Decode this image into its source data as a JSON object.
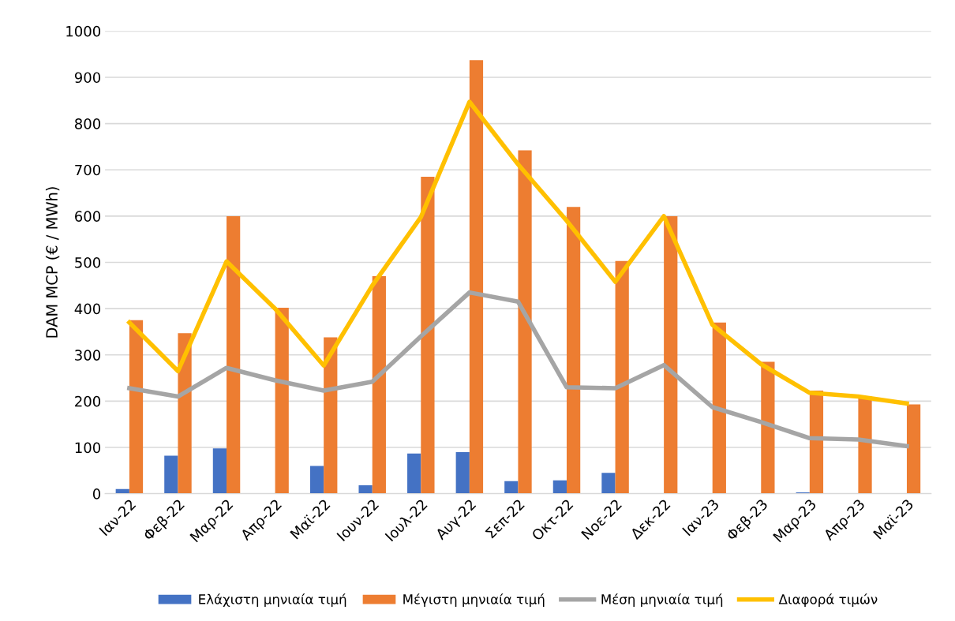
{
  "chart_data": {
    "type": "bar",
    "ylabel": "DAM MCP (€ / MWh)",
    "categories": [
      "Ιαν-22",
      "Φεβ-22",
      "Μαρ-22",
      "Απρ-22",
      "Μαϊ-22",
      "Ιουν-22",
      "Ιουλ-22",
      "Αυγ-22",
      "Σεπ-22",
      "Οκτ-22",
      "Νοε-22",
      "Δεκ-22",
      "Ιαν-23",
      "Φεβ-23",
      "Μαρ-23",
      "Απρ-23",
      "Μαϊ-23"
    ],
    "series": [
      {
        "name": "Ελάχιστη μηνιαία τιμή",
        "color": "#4472c4",
        "values": [
          10,
          82,
          98,
          0,
          60,
          18,
          87,
          90,
          27,
          29,
          45,
          0,
          0,
          0,
          3,
          0,
          0
        ]
      },
      {
        "name": "Μέγιστη μηνιαία τιμή",
        "color": "#ed7d31",
        "values": [
          375,
          347,
          600,
          402,
          338,
          470,
          685,
          937,
          742,
          620,
          503,
          600,
          370,
          285,
          223,
          210,
          193
        ]
      },
      {
        "name": "Μέση μηνιαία τιμή",
        "type": "line",
        "color": "#a5a5a5",
        "values": [
          228,
          210,
          272,
          245,
          223,
          242,
          340,
          435,
          415,
          230,
          228,
          278,
          187,
          155,
          120,
          117,
          103
        ]
      },
      {
        "name": "Διαφορά τιμών",
        "type": "line",
        "color": "#ffc000",
        "values": [
          370,
          265,
          502,
          400,
          277,
          450,
          598,
          847,
          712,
          590,
          458,
          600,
          365,
          280,
          218,
          210,
          195
        ]
      }
    ],
    "ylim": [
      0,
      1000
    ],
    "yticks": [
      0,
      100,
      200,
      300,
      400,
      500,
      600,
      700,
      800,
      900,
      1000
    ],
    "grid": "y",
    "legend": "bottom"
  }
}
